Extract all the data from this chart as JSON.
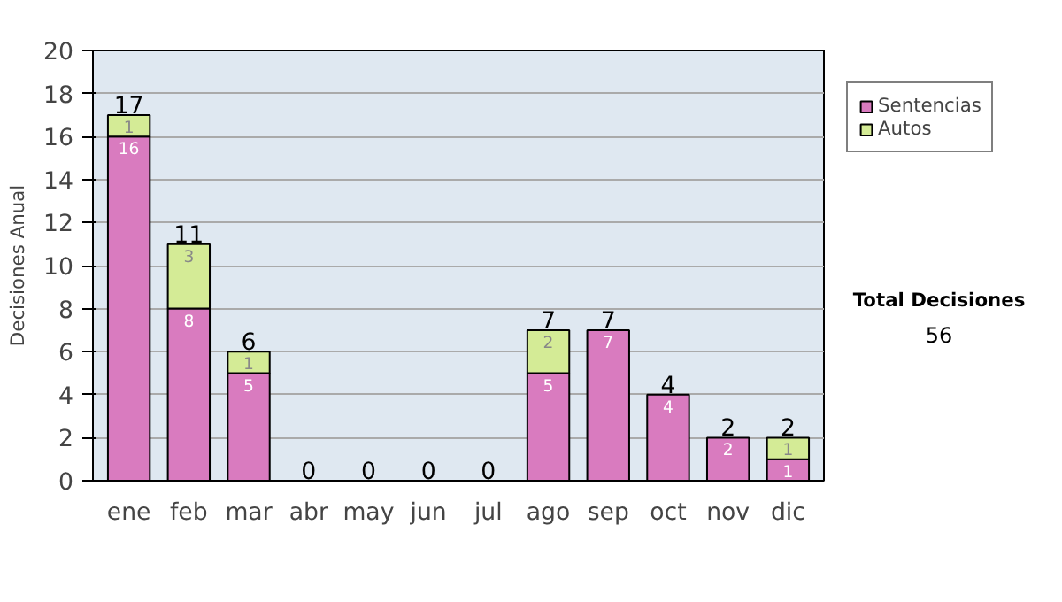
{
  "chart_data": {
    "type": "bar",
    "stacked": true,
    "ylabel": "Decisiones Anual",
    "categories": [
      "ene",
      "feb",
      "mar",
      "abr",
      "may",
      "jun",
      "jul",
      "ago",
      "sep",
      "oct",
      "nov",
      "dic"
    ],
    "series": [
      {
        "name": "Sentencias",
        "color": "#d97bbf",
        "values": [
          16,
          8,
          5,
          0,
          0,
          0,
          0,
          5,
          7,
          4,
          2,
          1
        ],
        "value_labels": [
          "16",
          "8",
          "5",
          null,
          null,
          null,
          null,
          "5",
          "7",
          "4",
          "2",
          "1"
        ]
      },
      {
        "name": "Autos",
        "color": "#d4eb96",
        "values": [
          1,
          3,
          1,
          0,
          0,
          0,
          0,
          2,
          0,
          0,
          0,
          1
        ],
        "value_labels": [
          "1",
          "3",
          "1",
          null,
          null,
          null,
          null,
          "2",
          null,
          null,
          null,
          "1"
        ]
      }
    ],
    "totals": [
      "17",
      "11",
      "6",
      "0",
      "0",
      "0",
      "0",
      "7",
      "7",
      "4",
      "2",
      "2"
    ],
    "ylim": [
      0,
      20
    ],
    "yticks": [
      0,
      2,
      4,
      6,
      8,
      10,
      12,
      14,
      16,
      18,
      20
    ],
    "grid": "y",
    "legend": "right",
    "annotations": [
      "Total Decisiones",
      "56"
    ]
  }
}
